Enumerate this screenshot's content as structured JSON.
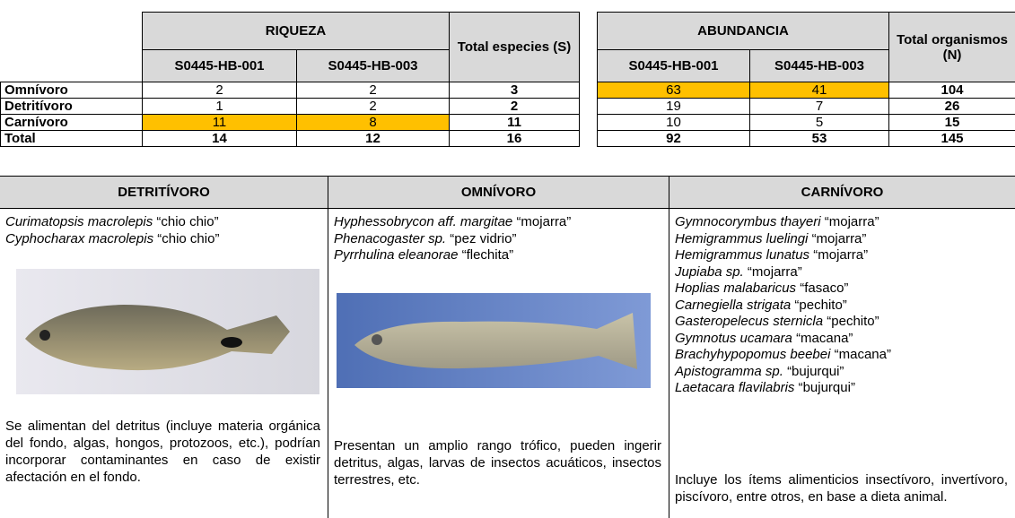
{
  "summary_table": {
    "group_headers": [
      "RIQUEZA",
      "Total especies (S)",
      "ABUNDANCIA",
      "Total organismos (N)"
    ],
    "sub_headers": [
      "S0445-HB-001",
      "S0445-HB-003",
      "S0445-HB-001",
      "S0445-HB-003"
    ],
    "rows": [
      {
        "label": "Omnívoro",
        "values": [
          2,
          2,
          3,
          63,
          41,
          104
        ]
      },
      {
        "label": "Detritívoro",
        "values": [
          1,
          2,
          2,
          19,
          7,
          26
        ]
      },
      {
        "label": "Carnívoro",
        "values": [
          11,
          8,
          11,
          10,
          5,
          15
        ]
      },
      {
        "label": "Total",
        "values": [
          14,
          12,
          16,
          92,
          53,
          145
        ]
      }
    ]
  },
  "guilds": [
    {
      "title": "DETRITÍVORO",
      "species": [
        {
          "name": "Curimatopsis macrolepis",
          "common": "“chio chio”"
        },
        {
          "name": "Cyphocharax macrolepis",
          "common": "“chio chio”"
        }
      ],
      "description": "Se alimentan del detritus (incluye materia orgánica del fondo, algas, hongos, protozoos, etc.), podrían incorporar contaminantes en caso de existir afectación en el fondo."
    },
    {
      "title": "OMNÍVORO",
      "species": [
        {
          "name": "Hyphessobrycon aff. margitae",
          "common": "“mojarra”"
        },
        {
          "name": "Phenacogaster sp.",
          "common": "“pez vidrio”"
        },
        {
          "name": "Pyrrhulina eleanorae",
          "common": "“flechita”"
        }
      ],
      "description": "Presentan un amplio rango trófico, pueden ingerir detritus, algas, larvas de insectos acuáticos, insectos terrestres, etc."
    },
    {
      "title": "CARNÍVORO",
      "species": [
        {
          "name": "Gymnocorymbus thayeri",
          "common": "“mojarra”"
        },
        {
          "name": "Hemigrammus luelingi",
          "common": "“mojarra”"
        },
        {
          "name": "Hemigrammus lunatus",
          "common": "“mojarra”"
        },
        {
          "name": "Jupiaba sp.",
          "common": "“mojarra”"
        },
        {
          "name": "Hoplias malabaricus",
          "common": "“fasaco”"
        },
        {
          "name": "Carnegiella strigata",
          "common": "“pechito”"
        },
        {
          "name": "Gasteropelecus sternicla",
          "common": "“pechito”"
        },
        {
          "name": "Gymnotus ucamara",
          "common": "“macana”"
        },
        {
          "name": "Brachyhypopomus beebei",
          "common": "“macana”"
        },
        {
          "name": "Apistogramma sp.",
          "common": "“bujurqui”"
        },
        {
          "name": "Laetacara flavilabris",
          "common": "“bujurqui”"
        }
      ],
      "description": "Incluye los ítems alimenticios insectívoro, invertívoro, piscívoro, entre otros, en base a dieta animal."
    }
  ]
}
